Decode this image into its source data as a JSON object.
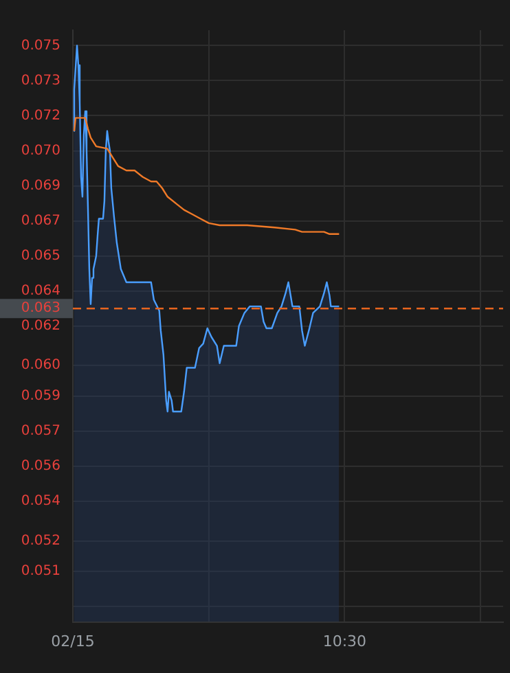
{
  "chart_data": {
    "type": "line",
    "xlim": [
      "--02-15T09:30",
      "--02-15T11:05"
    ],
    "xticks": [
      {
        "value": "--02-15T09:30",
        "label": "02/15"
      },
      {
        "value": "--02-15T10:00",
        "label": null
      },
      {
        "value": "--02-15T10:30",
        "label": "10:30"
      },
      {
        "value": "--02-15T11:00",
        "label": null
      }
    ],
    "ylim": [
      0.0487,
      0.0757
    ],
    "yticks": [
      0.075,
      {
        "value": 0.0734,
        "label": "0.073"
      },
      {
        "value": 0.0718,
        "label": "0.072"
      },
      {
        "value": 0.0702,
        "label": "0.070"
      },
      {
        "value": 0.0686,
        "label": "0.069"
      },
      0.067,
      {
        "value": 0.0654,
        "label": "0.065"
      },
      {
        "value": 0.0638,
        "label": "0.064"
      },
      {
        "value": 0.0622,
        "label": "0.062"
      },
      {
        "value": 0.0604,
        "label": "0.060"
      },
      0.059,
      {
        "value": 0.0574,
        "label": "0.057"
      },
      {
        "value": 0.0558,
        "label": "0.056"
      },
      {
        "value": 0.0542,
        "label": "0.054"
      },
      {
        "value": 0.0524,
        "label": "0.052"
      },
      0.051,
      {
        "value": 0.0494,
        "label": null
      }
    ],
    "grid": true,
    "legend": false,
    "marker": "none",
    "ref_lines": [
      {
        "axis": "y",
        "value": 0.063,
        "label": "0.063",
        "color": "#e8651e",
        "line_style": "dashed"
      }
    ],
    "series": [
      {
        "type": "area",
        "color": "#4a9eff",
        "x": [
          "--02-15T09:30:13",
          "--02-15T09:30:18",
          "--02-15T09:30:55",
          "--02-15T09:31:13",
          "--02-15T09:31:31",
          "--02-15T09:31:49",
          "--02-15T09:32:07",
          "--02-15T09:32:25",
          "--02-15T09:32:44",
          "--02-15T09:33:02",
          "--02-15T09:33:20",
          "--02-15T09:33:38",
          "--02-15T09:33:56",
          "--02-15T09:34:15",
          "--02-15T09:34:33",
          "--02-15T09:35:09",
          "--02-15T09:35:27",
          "--02-15T09:35:45",
          "--02-15T09:36:40",
          "--02-15T09:36:58",
          "--02-15T09:37:16",
          "--02-15T09:37:35",
          "--02-15T09:37:53",
          "--02-15T09:38:11",
          "--02-15T09:38:29",
          "--02-15T09:39:05",
          "--02-15T09:39:42",
          "--02-15T09:40:36",
          "--02-15T09:41:49",
          "--02-15T09:47:16",
          "--02-15T09:47:53",
          "--02-15T09:49:05",
          "--02-15T09:49:24",
          "--02-15T09:50:00",
          "--02-15T09:50:36",
          "--02-15T09:50:55",
          "--02-15T09:51:13",
          "--02-15T09:51:49",
          "--02-15T09:52:07",
          "--02-15T09:53:56",
          "--02-15T09:54:33",
          "--02-15T09:55:09",
          "--02-15T09:56:58",
          "--02-15T09:57:53",
          "--02-15T09:58:47",
          "--02-15T09:59:42",
          "--02-15T10:00:36",
          "--02-15T10:01:49",
          "--02-15T10:02:25",
          "--02-15T10:03:20",
          "--02-15T10:06:04",
          "--02-15T10:06:40",
          "--02-15T10:07:53",
          "--02-15T10:09:05",
          "--02-15T10:11:31",
          "--02-15T10:12:07",
          "--02-15T10:12:44",
          "--02-15T10:13:56",
          "--02-15T10:15:09",
          "--02-15T10:16:04",
          "--02-15T10:16:58",
          "--02-15T10:17:35",
          "--02-15T10:18:29",
          "--02-15T10:20:00",
          "--02-15T10:20:36",
          "--02-15T10:21:13",
          "--02-15T10:22:07",
          "--02-15T10:23:02",
          "--02-15T10:24:33",
          "--02-15T10:25:27",
          "--02-15T10:26:04",
          "--02-15T10:26:40",
          "--02-15T10:26:58",
          "--02-15T10:28:47"
        ],
        "values": [
          0.0711,
          0.073,
          0.075,
          0.0741,
          0.0724,
          0.069,
          0.0681,
          0.0709,
          0.072,
          0.0702,
          0.0676,
          0.0648,
          0.0632,
          0.0644,
          0.0648,
          0.0654,
          0.0663,
          0.0671,
          0.0671,
          0.0679,
          0.0702,
          0.0711,
          0.0706,
          0.0702,
          0.0685,
          0.0672,
          0.066,
          0.0648,
          0.0642,
          0.0642,
          0.0634,
          0.0629,
          0.062,
          0.0609,
          0.0588,
          0.0583,
          0.0592,
          0.0588,
          0.0583,
          0.0583,
          0.0592,
          0.0603,
          0.0603,
          0.0612,
          0.0614,
          0.0621,
          0.0617,
          0.0613,
          0.0605,
          0.0613,
          0.0613,
          0.0622,
          0.0628,
          0.0631,
          0.0631,
          0.0624,
          0.0621,
          0.0621,
          0.0628,
          0.0631,
          0.0637,
          0.0642,
          0.0631,
          0.0631,
          0.062,
          0.0613,
          0.062,
          0.0628,
          0.0631,
          0.0637,
          0.0642,
          0.0636,
          0.0631,
          0.0631
        ]
      },
      {
        "type": "line",
        "color": "#f07a28",
        "x": [
          "--02-15T09:30:18",
          "--02-15T09:30:36",
          "--02-15T09:32:44",
          "--02-15T09:33:20",
          "--02-15T09:33:56",
          "--02-15T09:35:09",
          "--02-15T09:37:35",
          "--02-15T09:38:47",
          "--02-15T09:40:00",
          "--02-15T09:41:49",
          "--02-15T09:43:38",
          "--02-15T09:45:27",
          "--02-15T09:47:16",
          "--02-15T09:48:29",
          "--02-15T09:49:42",
          "--02-15T09:50:55",
          "--02-15T09:52:44",
          "--02-15T09:54:33",
          "--02-15T09:56:22",
          "--02-15T09:58:11",
          "--02-15T10:00:00",
          "--02-15T10:02:25",
          "--02-15T10:08:29",
          "--02-15T10:14:33",
          "--02-15T10:19:05",
          "--02-15T10:20:36",
          "--02-15T10:25:27",
          "--02-15T10:26:40",
          "--02-15T10:28:47"
        ],
        "values": [
          0.0711,
          0.0717,
          0.0717,
          0.0712,
          0.0708,
          0.0704,
          0.0703,
          0.0699,
          0.0695,
          0.0693,
          0.0693,
          0.069,
          0.0688,
          0.0688,
          0.0685,
          0.0681,
          0.0678,
          0.0675,
          0.0673,
          0.0671,
          0.0669,
          0.0668,
          0.0668,
          0.0667,
          0.0666,
          0.0665,
          0.0665,
          0.0664,
          0.0664
        ]
      }
    ]
  }
}
